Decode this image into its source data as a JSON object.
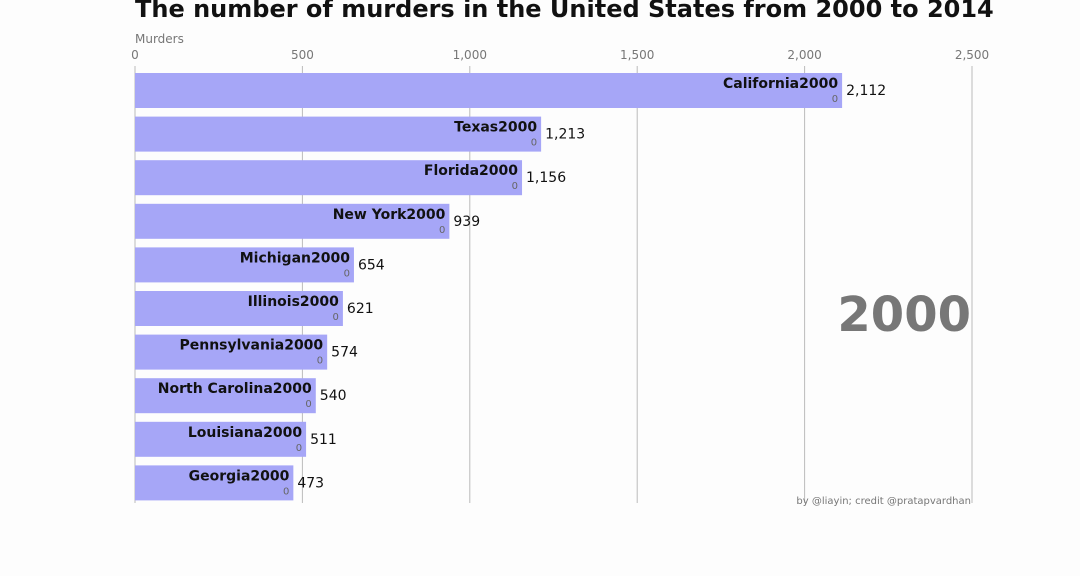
{
  "chart_data": {
    "type": "bar",
    "orientation": "horizontal",
    "title": "The number of murders in the United States from 2000 to 2014",
    "xlabel": "Murders",
    "xlim": [
      0,
      2500
    ],
    "xticks": [
      0,
      500,
      1000,
      1500,
      2000,
      2500
    ],
    "xtick_labels": [
      "0",
      "500",
      "1,000",
      "1,500",
      "2,000",
      "2,500"
    ],
    "grid": true,
    "categories": [
      "California2000",
      "Texas2000",
      "Florida2000",
      "New York2000",
      "Michigan2000",
      "Illinois2000",
      "Pennsylvania2000",
      "North Carolina2000",
      "Louisiana2000",
      "Georgia2000"
    ],
    "sublabels": [
      "0",
      "0",
      "0",
      "0",
      "0",
      "0",
      "0",
      "0",
      "0",
      "0"
    ],
    "values": [
      2112,
      1213,
      1156,
      939,
      654,
      621,
      574,
      540,
      511,
      473
    ],
    "value_labels": [
      "2,112",
      "1,213",
      "1,156",
      "939",
      "654",
      "621",
      "574",
      "540",
      "511",
      "473"
    ],
    "year": "2000",
    "credit": "by @liayin; credit @pratapvardhan",
    "bar_color": "#a6a6f7"
  }
}
